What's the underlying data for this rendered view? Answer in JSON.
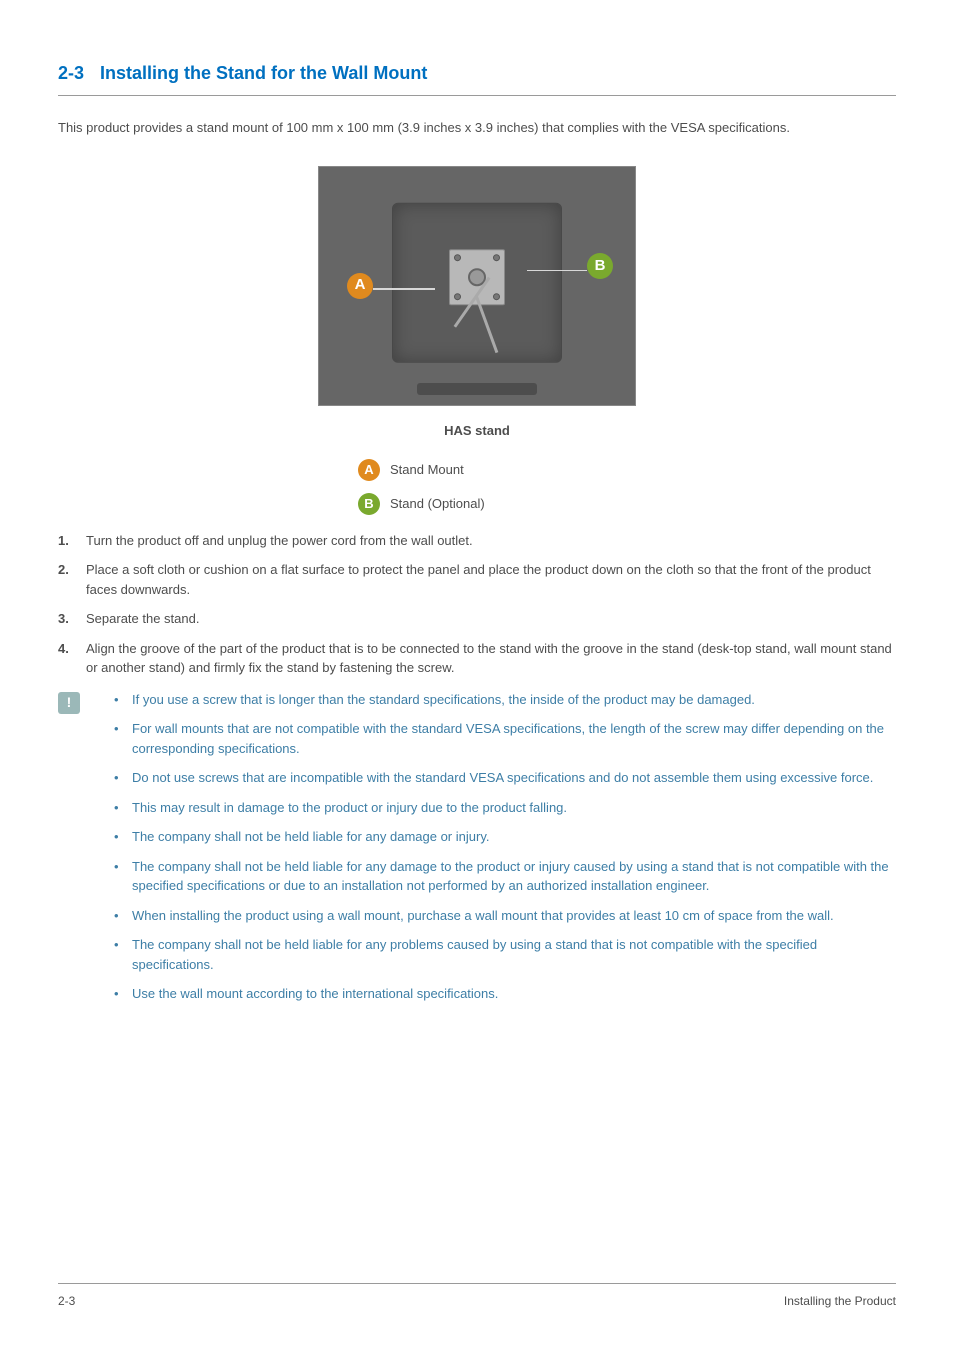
{
  "heading": {
    "number": "2-3",
    "title": "Installing the Stand for the Wall Mount"
  },
  "intro": "This product provides a stand mount of 100 mm x 100 mm (3.9 inches x 3.9 inches) that complies with the VESA specifications.",
  "figure": {
    "caption": "HAS stand",
    "labelA": "A",
    "labelB": "B",
    "legendA": "Stand Mount",
    "legendB": "Stand (Optional)"
  },
  "steps": [
    "Turn the product off and unplug the power cord from the wall outlet.",
    "Place a soft cloth or cushion on a flat surface to protect the panel and place the product down on the cloth so that the front of the product faces downwards.",
    "Separate the stand.",
    "Align the groove of the part of the product that is to be connected to the stand with the groove in the stand (desk-top stand, wall mount stand or another stand) and firmly fix the stand by fastening the screw."
  ],
  "callout": {
    "iconGlyph": "!",
    "items": [
      "If you use a screw that is longer than the standard specifications, the inside of the product may be damaged.",
      "For wall mounts that are not compatible with the standard VESA specifications, the length of the screw may differ depending on the corresponding specifications.",
      "Do not use screws that are incompatible with the standard VESA specifications and do not assemble them using excessive force.",
      "This may result in damage to the product or injury due to the product falling.",
      "The company shall not be held liable for any damage or injury.",
      "The company shall not be held liable for any damage to the product or injury caused by using a stand that is not compatible with the specified specifications or due to an installation not performed by an authorized installation engineer.",
      "When installing the product using a wall mount, purchase a wall mount that provides at least 10 cm of space from the wall.",
      "The company shall not be held liable for any problems caused by using a stand that is not compatible with the specified specifications.",
      "Use the wall mount according to the international specifications."
    ]
  },
  "footer": {
    "left": "2-3",
    "right": "Installing the Product"
  },
  "colors": {
    "headingColor": "#0070c0",
    "bodyText": "#4d4d4d",
    "calloutText": "#3d7ea6",
    "badgeA": "#e08a1e",
    "badgeB": "#7aa92e",
    "calloutIconBg": "#9bb8b8",
    "ruleColor": "#9a9a9a",
    "figureBg": "#666666"
  },
  "typography": {
    "headingSize": 18,
    "bodySize": 13,
    "footerSize": 12,
    "fontFamily": "Arial"
  },
  "layout": {
    "pageWidth": 954,
    "pageHeight": 1350,
    "sideMargin": 58,
    "topMargin": 60
  }
}
